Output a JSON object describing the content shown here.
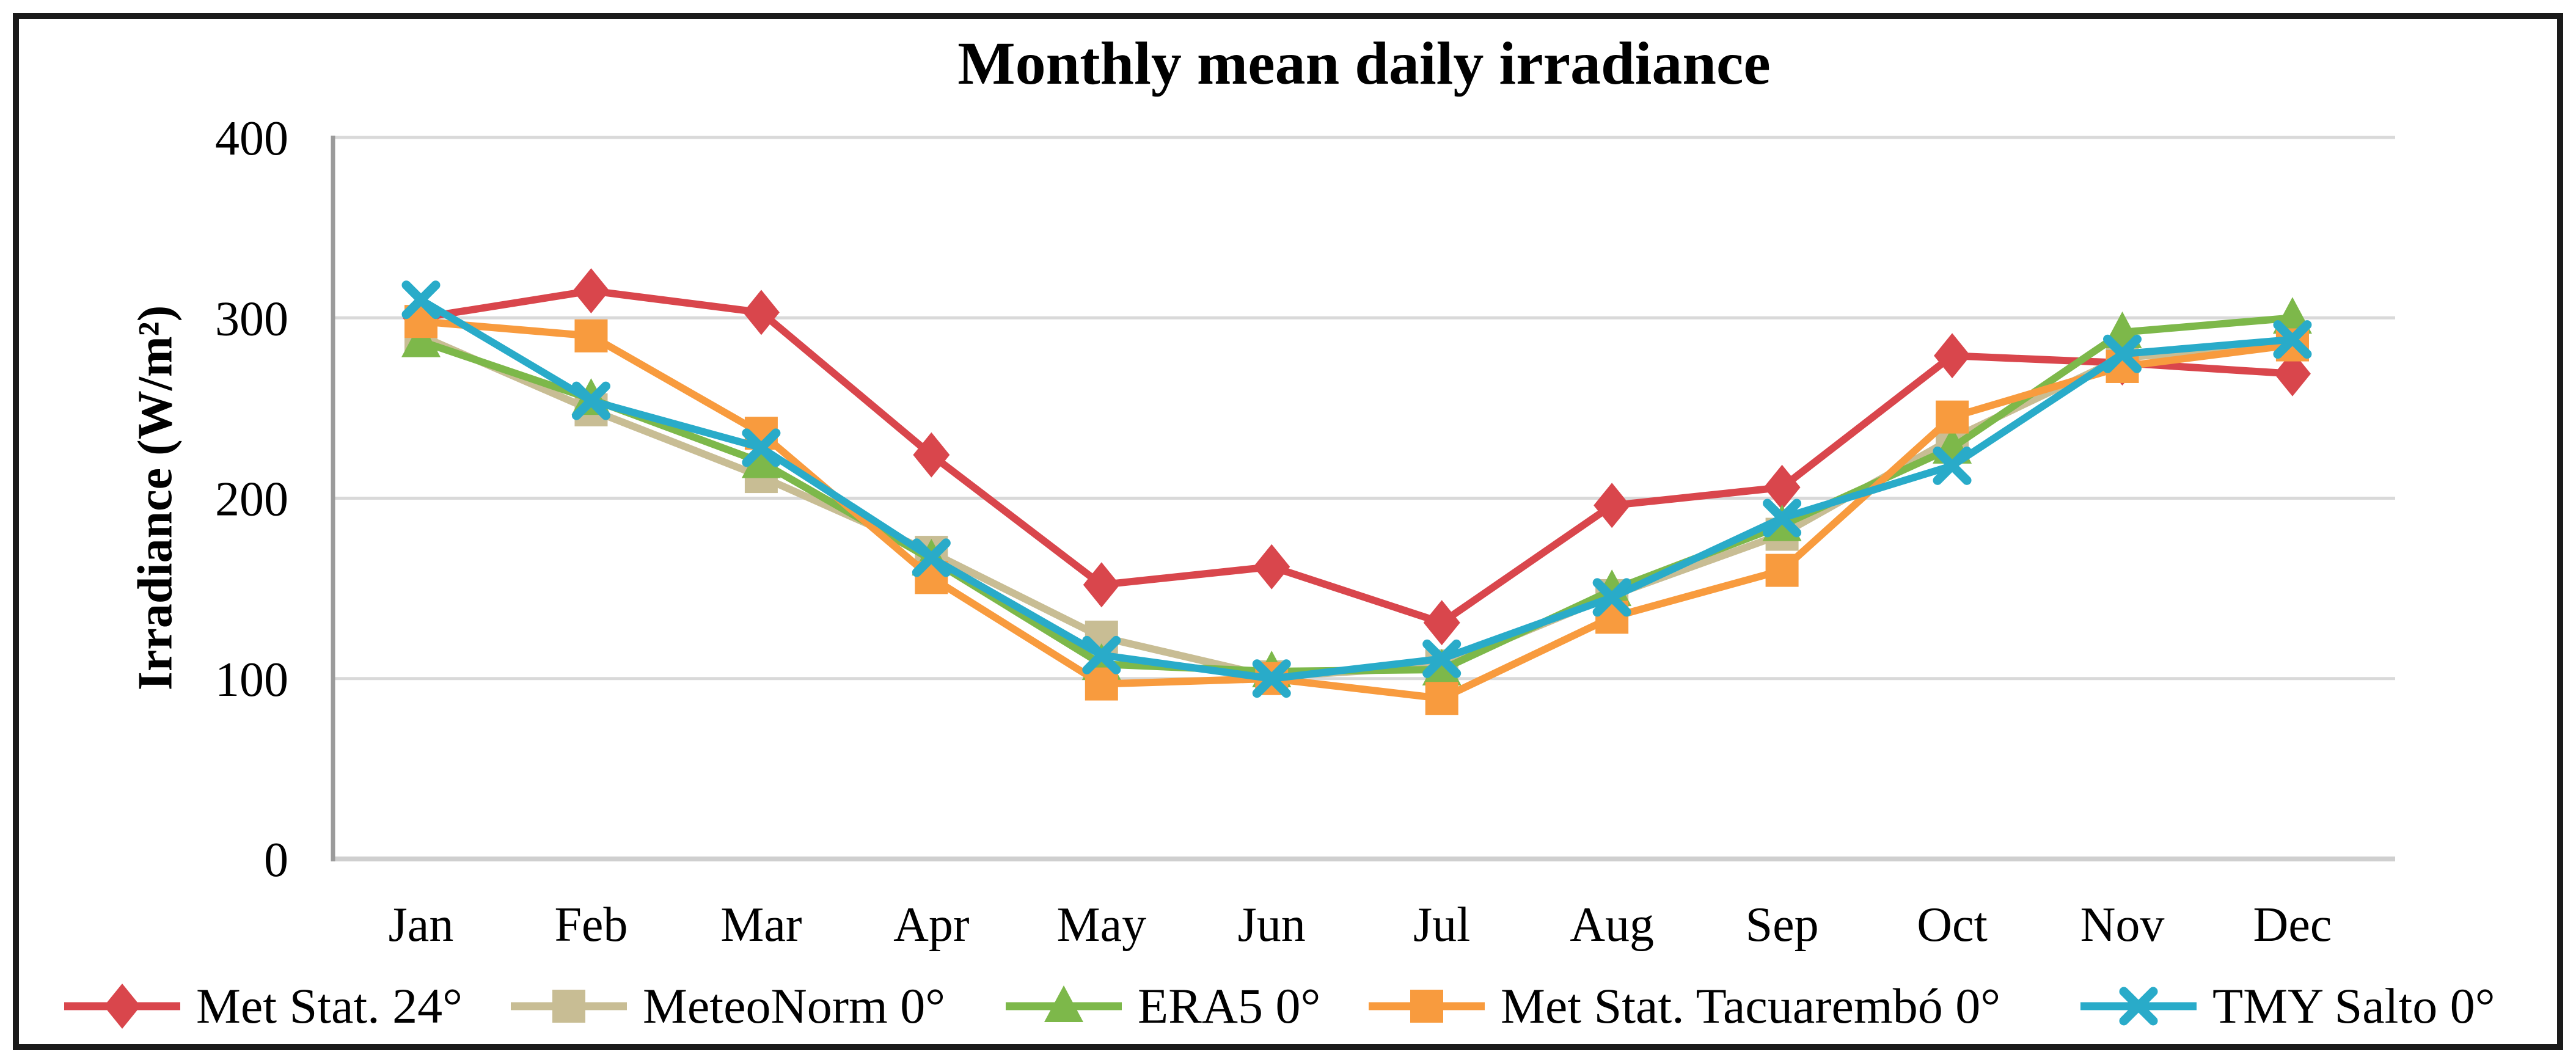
{
  "title": "Monthly mean daily irradiance",
  "chart_data": {
    "type": "line",
    "title": "Monthly mean daily irradiance",
    "xlabel": "",
    "ylabel": "Irradiance (W/m²)",
    "ylim": [
      0,
      400
    ],
    "yticks": [
      0,
      100,
      200,
      300,
      400
    ],
    "grid": "horizontal",
    "legend_position": "bottom",
    "categories": [
      "Jan",
      "Feb",
      "Mar",
      "Apr",
      "May",
      "Jun",
      "Jul",
      "Aug",
      "Sep",
      "Oct",
      "Nov",
      "Dec"
    ],
    "series": [
      {
        "name": "Met Stat. 24°",
        "marker": "diamond",
        "color": "#d9464c",
        "values": [
          300,
          315,
          303,
          224,
          152,
          162,
          131,
          196,
          206,
          279,
          275,
          269
        ]
      },
      {
        "name": "MeteoNorm 0°",
        "marker": "square",
        "color": "#c8bd94",
        "values": [
          290,
          249,
          212,
          170,
          123,
          101,
          107,
          146,
          180,
          233,
          278,
          285
        ]
      },
      {
        "name": "ERA5 0°",
        "marker": "triangle",
        "color": "#7db84a",
        "values": [
          287,
          255,
          220,
          166,
          108,
          104,
          105,
          149,
          185,
          228,
          292,
          300
        ]
      },
      {
        "name": "Met Stat. Tacuarembó 0°",
        "marker": "square",
        "color": "#f89b3e",
        "values": [
          298,
          290,
          236,
          156,
          97,
          100,
          89,
          134,
          160,
          245,
          273,
          285
        ]
      },
      {
        "name": "TMY Salto 0°",
        "marker": "x",
        "color": "#29abc9",
        "values": [
          310,
          254,
          228,
          167,
          113,
          100,
          111,
          145,
          189,
          218,
          280,
          288
        ]
      }
    ]
  },
  "colors": {
    "gridline": "#d9d9d9",
    "zero_line": "#cfcfcf",
    "axis_line": "#9b9b9b",
    "figure_border": "#1a1a1a",
    "text": "#000000"
  }
}
